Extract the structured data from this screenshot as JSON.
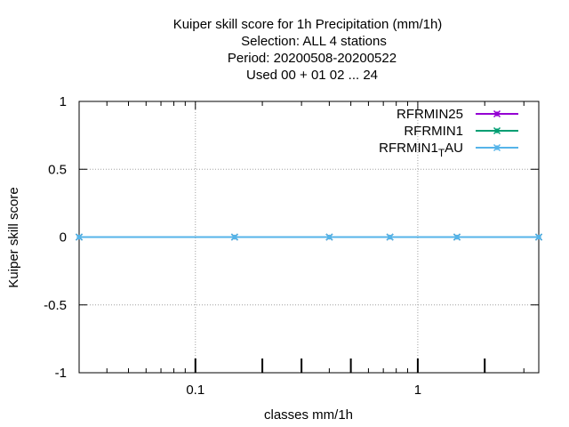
{
  "chart_data": {
    "type": "line",
    "title_lines": [
      "Kuiper skill score  for 1h Precipitation (mm/1h)",
      "Selection: ALL      4 stations",
      "Period: 20200508-20200522",
      "Used  00 + 01 02 ... 24"
    ],
    "xlabel": "classes mm/1h",
    "ylabel": "Kuiper skill score",
    "xscale": "log",
    "xlim": [
      0.03,
      3.5
    ],
    "ylim": [
      -1,
      1
    ],
    "grid": true,
    "legend_position": "top-right",
    "y_ticks": [
      1,
      0.5,
      0,
      -0.5,
      -1
    ],
    "y_tick_labels": [
      "1",
      "0.5",
      "0",
      "-0.5",
      "-1"
    ],
    "x_major_ticks": [
      0.1,
      1
    ],
    "x_tick_labels": [
      "0.1",
      "1"
    ],
    "x_minor_ticks": [
      0.04,
      0.05,
      0.06,
      0.07,
      0.08,
      0.09,
      0.2,
      0.3,
      0.4,
      0.5,
      0.6,
      0.7,
      0.8,
      0.9,
      2,
      3
    ],
    "x_bold_ticks": [
      0.1,
      0.2,
      0.3,
      0.5,
      1,
      2
    ],
    "series": [
      {
        "name": "RFRMIN25",
        "color": "#9400d3",
        "x": [
          0.03,
          0.15,
          0.4,
          0.75,
          1.5,
          3.5
        ],
        "y": [
          0,
          0,
          0,
          0,
          0,
          0
        ]
      },
      {
        "name": "RFRMIN1",
        "color": "#009e73",
        "x": [
          0.03,
          0.15,
          0.4,
          0.75,
          1.5,
          3.5
        ],
        "y": [
          0,
          0,
          0,
          0,
          0,
          0
        ]
      },
      {
        "name": "RFRMIN1_TAU",
        "legend_main": "RFRMIN1",
        "legend_sub": "T",
        "legend_tail": "AU",
        "color": "#56b4e9",
        "x": [
          0.03,
          0.15,
          0.4,
          0.75,
          1.5,
          3.5
        ],
        "y": [
          0,
          0,
          0,
          0,
          0,
          0
        ]
      }
    ]
  }
}
